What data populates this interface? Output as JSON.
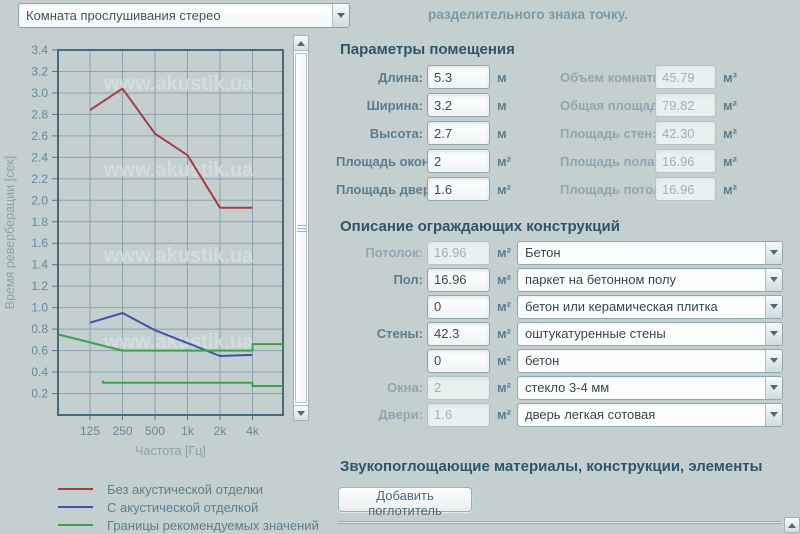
{
  "top": {
    "room_select_value": "Комната прослушивания стерео",
    "hint": "разделительного знака точку."
  },
  "chart_data": {
    "type": "line",
    "xlabel": "Частота [Гц]",
    "ylabel": "Время реверберации [сек]",
    "x_scale": "log2",
    "x_ticks": [
      "125",
      "250",
      "500",
      "1k",
      "2k",
      "4k"
    ],
    "x_tick_freqs": [
      125,
      250,
      500,
      1000,
      2000,
      4000
    ],
    "x_range_hz": [
      64,
      7700
    ],
    "ylim": [
      0,
      3.4
    ],
    "y_ticks": [
      "3.4",
      "3.2",
      "3.0",
      "2.8",
      "2.6",
      "2.4",
      "2.2",
      "2.0",
      "1.8",
      "1.6",
      "1.4",
      "1.2",
      "1.0",
      "0.8",
      "0.6",
      "0.4",
      "0.2"
    ],
    "grid": true,
    "watermark": "www.akustik.ua",
    "series": [
      {
        "name": "Без акустической отделки",
        "color": "#a23e48",
        "points": [
          [
            125,
            2.84
          ],
          [
            250,
            3.04
          ],
          [
            500,
            2.62
          ],
          [
            1000,
            2.42
          ],
          [
            2000,
            1.93
          ],
          [
            4000,
            1.93
          ]
        ]
      },
      {
        "name": "С акустической отделкой",
        "color": "#3d55a8",
        "points": [
          [
            125,
            0.86
          ],
          [
            250,
            0.95
          ],
          [
            500,
            0.79
          ],
          [
            1000,
            0.67
          ],
          [
            2000,
            0.55
          ],
          [
            4000,
            0.56
          ]
        ]
      },
      {
        "name": "Границы рекомендуемых значений (верхняя)",
        "color": "#3aa34a",
        "points": [
          [
            64,
            0.75
          ],
          [
            250,
            0.6
          ],
          [
            4000,
            0.6
          ],
          [
            4000,
            0.66
          ],
          [
            7700,
            0.66
          ]
        ]
      },
      {
        "name": "Границы рекомендуемых значений (нижняя)",
        "color": "#3aa34a",
        "points": [
          [
            165,
            0.32
          ],
          [
            165,
            0.3
          ],
          [
            4000,
            0.3
          ],
          [
            4000,
            0.27
          ],
          [
            7700,
            0.27
          ]
        ]
      }
    ],
    "legend": [
      {
        "label": "Без акустической отделки",
        "color": "#a23e48"
      },
      {
        "label": "С акустической отделкой",
        "color": "#3d55a8"
      },
      {
        "label": "Границы рекомендуемых значений",
        "color": "#3aa34a"
      }
    ],
    "legend_position": "bottom-left"
  },
  "sections": {
    "params": {
      "title": "Параметры помещения",
      "left": [
        {
          "key": "length",
          "label": "Длина:",
          "value": "5.3",
          "unit": "м",
          "disabled": false
        },
        {
          "key": "width",
          "label": "Ширина:",
          "value": "3.2",
          "unit": "м",
          "disabled": false
        },
        {
          "key": "height",
          "label": "Высота:",
          "value": "2.7",
          "unit": "м",
          "disabled": false
        },
        {
          "key": "windows-area",
          "label": "Площадь окон:",
          "value": "2",
          "unit": "м²",
          "disabled": false
        },
        {
          "key": "doors-area",
          "label": "Площадь дверей:",
          "value": "1.6",
          "unit": "м²",
          "disabled": false
        }
      ],
      "right": [
        {
          "key": "room-volume",
          "label": "Объем комнаты:",
          "value": "45.79",
          "unit": "м³",
          "disabled": true
        },
        {
          "key": "total-area",
          "label": "Общая площадь:",
          "value": "79.82",
          "unit": "м²",
          "disabled": true
        },
        {
          "key": "walls-area",
          "label": "Площадь стен:",
          "value": "42.30",
          "unit": "м²",
          "disabled": true
        },
        {
          "key": "floor-area",
          "label": "Площадь пола:",
          "value": "16.96",
          "unit": "м²",
          "disabled": true
        },
        {
          "key": "ceiling-area",
          "label": "Площадь потолка:",
          "value": "16.96",
          "unit": "м²",
          "disabled": true
        }
      ]
    },
    "constructions": {
      "title": "Описание ограждающих конструкций",
      "rows": [
        {
          "key": "ceiling",
          "label": "Потолок:",
          "area": "16.96",
          "unit": "м²",
          "area_disabled": true,
          "material": "Бетон"
        },
        {
          "key": "floor",
          "label": "Пол:",
          "area": "16.96",
          "unit": "м²",
          "area_disabled": false,
          "material": "паркет на бетонном полу"
        },
        {
          "key": "floor-2",
          "label": "",
          "area": "0",
          "unit": "м²",
          "area_disabled": false,
          "material": "бетон или керамическая плитка"
        },
        {
          "key": "walls",
          "label": "Стены:",
          "area": "42.3",
          "unit": "м²",
          "area_disabled": false,
          "material": "оштукатуренные стены"
        },
        {
          "key": "walls-2",
          "label": "",
          "area": "0",
          "unit": "м²",
          "area_disabled": false,
          "material": "бетон"
        },
        {
          "key": "windows",
          "label": "Окна:",
          "area": "2",
          "unit": "м²",
          "area_disabled": true,
          "material": "стекло 3-4 мм"
        },
        {
          "key": "doors",
          "label": "Двери:",
          "area": "1.6",
          "unit": "м²",
          "area_disabled": true,
          "material": "дверь легкая сотовая"
        }
      ]
    },
    "absorbers": {
      "title": "Звукопоглощающие материалы, конструкции, элементы",
      "add_button": "Добавить поглотитель"
    }
  }
}
